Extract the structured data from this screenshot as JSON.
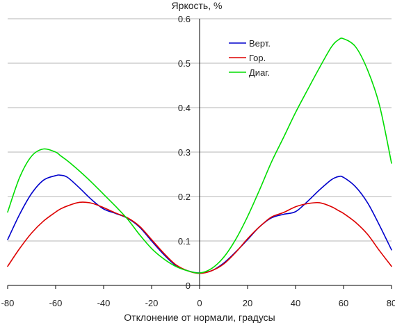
{
  "chart_data": {
    "type": "line",
    "title": "",
    "xlabel": "Отклонение от нормали, градусы",
    "ylabel": "Яркость, %",
    "xlim": [
      -80,
      80
    ],
    "ylim": [
      0,
      0.6
    ],
    "x_ticks": [
      "-80",
      "-60",
      "-40",
      "-20",
      "0",
      "20",
      "40",
      "60",
      "80"
    ],
    "y_ticks": [
      "0",
      "0.1",
      "0.2",
      "0.3",
      "0.4",
      "0.5",
      "0.6"
    ],
    "grid": "horizontal",
    "legend_position": "top-right",
    "x": [
      -80,
      -75,
      -70,
      -65,
      -60,
      -58,
      -55,
      -50,
      -45,
      -40,
      -35,
      -30,
      -25,
      -20,
      -15,
      -10,
      -5,
      0,
      5,
      10,
      15,
      20,
      25,
      30,
      35,
      40,
      45,
      50,
      55,
      58,
      60,
      65,
      70,
      75,
      80
    ],
    "series": [
      {
        "name": "Верт.",
        "color": "#0000cc",
        "values": [
          0.103,
          0.16,
          0.207,
          0.237,
          0.247,
          0.248,
          0.243,
          0.219,
          0.193,
          0.172,
          0.162,
          0.151,
          0.131,
          0.1,
          0.07,
          0.045,
          0.033,
          0.028,
          0.033,
          0.05,
          0.075,
          0.103,
          0.132,
          0.152,
          0.16,
          0.166,
          0.189,
          0.215,
          0.238,
          0.245,
          0.243,
          0.222,
          0.186,
          0.135,
          0.08
        ]
      },
      {
        "name": "Гор.",
        "color": "#dd0000",
        "values": [
          0.043,
          0.083,
          0.118,
          0.145,
          0.165,
          0.172,
          0.179,
          0.187,
          0.185,
          0.175,
          0.163,
          0.152,
          0.133,
          0.103,
          0.073,
          0.047,
          0.033,
          0.027,
          0.033,
          0.048,
          0.074,
          0.105,
          0.132,
          0.154,
          0.164,
          0.177,
          0.184,
          0.186,
          0.177,
          0.168,
          0.162,
          0.142,
          0.115,
          0.078,
          0.043
        ]
      },
      {
        "name": "Диаг.",
        "color": "#00dd00",
        "values": [
          0.165,
          0.243,
          0.291,
          0.307,
          0.3,
          0.292,
          0.28,
          0.257,
          0.232,
          0.205,
          0.178,
          0.149,
          0.114,
          0.083,
          0.06,
          0.043,
          0.033,
          0.028,
          0.038,
          0.063,
          0.103,
          0.155,
          0.215,
          0.278,
          0.333,
          0.389,
          0.44,
          0.49,
          0.537,
          0.553,
          0.555,
          0.537,
          0.485,
          0.405,
          0.275
        ]
      }
    ]
  }
}
